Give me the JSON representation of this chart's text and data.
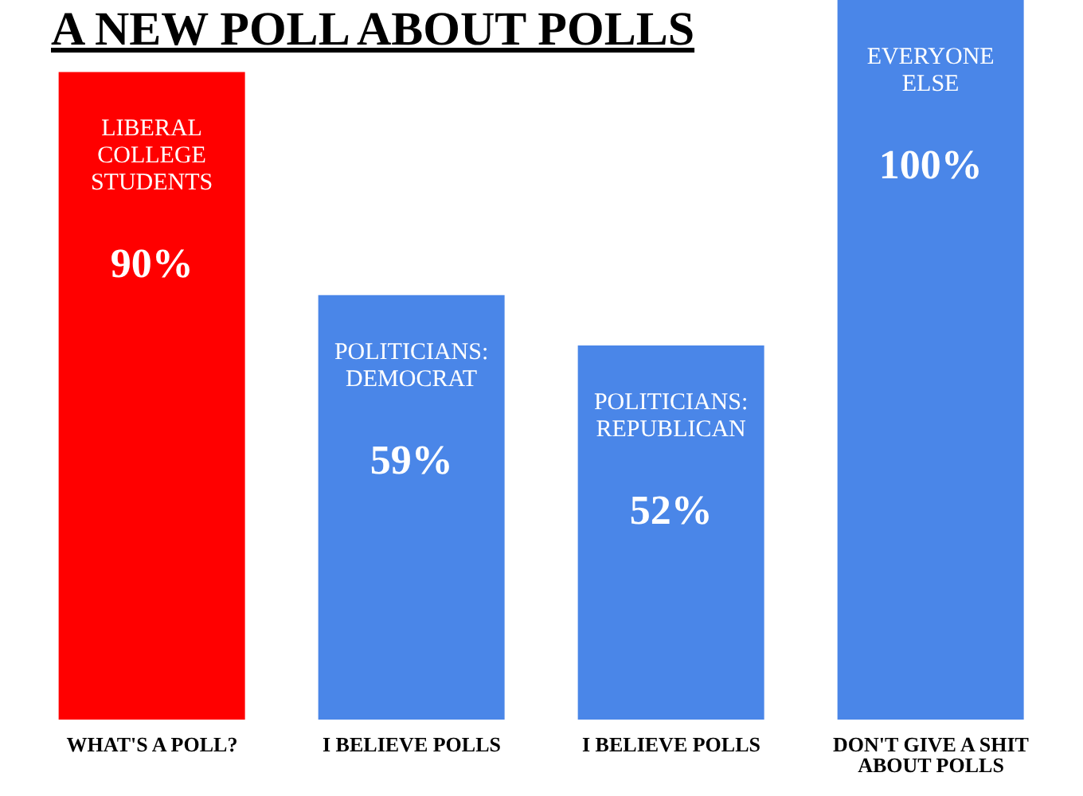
{
  "chart_data": {
    "type": "bar",
    "title": "A NEW POLL ABOUT POLLS",
    "categories": [
      "WHAT'S A POLL?",
      "I BELIEVE POLLS",
      "I BELIEVE POLLS",
      "DON'T GIVE A SHIT ABOUT POLLS"
    ],
    "values": [
      90,
      59,
      52,
      100
    ],
    "colors": [
      "#ff0000",
      "#4a86e8",
      "#4a86e8",
      "#4a86e8"
    ],
    "value_labels": [
      "90%",
      "59%",
      "52%",
      "100%"
    ],
    "annotations": [
      "LIBERAL COLLEGE STUDENTS",
      "POLITICIANS: DEMOCRAT",
      "POLITICIANS: REPUBLICAN",
      "EVERYONE ELSE"
    ],
    "tick_labels": "x",
    "grid": false,
    "legend": false
  }
}
